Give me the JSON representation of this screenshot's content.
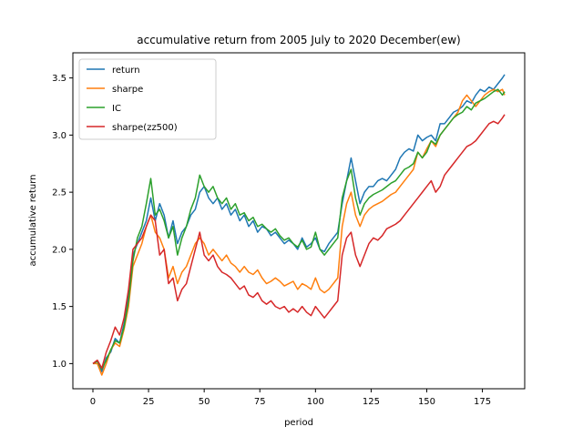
{
  "chart_data": {
    "type": "line",
    "title": "accumulative return from 2005 July to 2020 December(ew)",
    "xlabel": "period",
    "ylabel": "accumulative return",
    "xlim": [
      -9,
      194
    ],
    "ylim": [
      0.78,
      3.72
    ],
    "xticks": [
      0,
      25,
      50,
      75,
      100,
      125,
      150,
      175
    ],
    "xtick_labels": [
      "0",
      "25",
      "50",
      "75",
      "100",
      "125",
      "150",
      "175"
    ],
    "yticks": [
      1.0,
      1.5,
      2.0,
      2.5,
      3.0,
      3.5
    ],
    "ytick_labels": [
      "1.0",
      "1.5",
      "2.0",
      "2.5",
      "3.0",
      "3.5"
    ],
    "grid": false,
    "legend_position": "upper-left",
    "series": [
      {
        "name": "return",
        "color": "#1f77b4",
        "x": [
          0,
          2,
          4,
          6,
          8,
          10,
          12,
          14,
          16,
          18,
          20,
          22,
          24,
          26,
          28,
          30,
          32,
          34,
          36,
          38,
          40,
          42,
          44,
          46,
          48,
          50,
          52,
          54,
          56,
          58,
          60,
          62,
          64,
          66,
          68,
          70,
          72,
          74,
          76,
          78,
          80,
          82,
          84,
          86,
          88,
          90,
          92,
          94,
          96,
          98,
          100,
          102,
          104,
          106,
          108,
          110,
          112,
          114,
          116,
          118,
          120,
          122,
          124,
          126,
          128,
          130,
          132,
          134,
          136,
          138,
          140,
          142,
          144,
          146,
          148,
          150,
          152,
          154,
          156,
          158,
          160,
          162,
          164,
          166,
          168,
          170,
          172,
          174,
          176,
          178,
          180,
          182,
          184,
          185
        ],
        "y": [
          1.0,
          1.02,
          0.93,
          1.05,
          1.1,
          1.22,
          1.18,
          1.35,
          1.6,
          1.95,
          2.05,
          2.15,
          2.25,
          2.45,
          2.25,
          2.4,
          2.3,
          2.1,
          2.25,
          2.05,
          2.15,
          2.2,
          2.3,
          2.35,
          2.5,
          2.55,
          2.45,
          2.4,
          2.45,
          2.35,
          2.4,
          2.3,
          2.35,
          2.25,
          2.3,
          2.2,
          2.25,
          2.15,
          2.2,
          2.18,
          2.12,
          2.15,
          2.1,
          2.05,
          2.08,
          2.05,
          2.0,
          2.1,
          2.02,
          2.05,
          2.1,
          2.0,
          1.98,
          2.05,
          2.1,
          2.15,
          2.4,
          2.6,
          2.8,
          2.6,
          2.4,
          2.5,
          2.55,
          2.55,
          2.6,
          2.62,
          2.6,
          2.65,
          2.7,
          2.8,
          2.85,
          2.88,
          2.86,
          3.0,
          2.95,
          2.98,
          3.0,
          2.95,
          3.1,
          3.1,
          3.15,
          3.2,
          3.22,
          3.25,
          3.3,
          3.28,
          3.35,
          3.4,
          3.38,
          3.42,
          3.4,
          3.45,
          3.5,
          3.53
        ]
      },
      {
        "name": "sharpe",
        "color": "#ff7f0e",
        "x": [
          0,
          2,
          4,
          6,
          8,
          10,
          12,
          14,
          16,
          18,
          20,
          22,
          24,
          26,
          28,
          30,
          32,
          34,
          36,
          38,
          40,
          42,
          44,
          46,
          48,
          50,
          52,
          54,
          56,
          58,
          60,
          62,
          64,
          66,
          68,
          70,
          72,
          74,
          76,
          78,
          80,
          82,
          84,
          86,
          88,
          90,
          92,
          94,
          96,
          98,
          100,
          102,
          104,
          106,
          108,
          110,
          112,
          114,
          116,
          118,
          120,
          122,
          124,
          126,
          128,
          130,
          132,
          134,
          136,
          138,
          140,
          142,
          144,
          146,
          148,
          150,
          152,
          154,
          156,
          158,
          160,
          162,
          164,
          166,
          168,
          170,
          172,
          174,
          176,
          178,
          180,
          182,
          184,
          185
        ],
        "y": [
          1.0,
          1.0,
          0.9,
          1.0,
          1.12,
          1.18,
          1.15,
          1.3,
          1.5,
          1.85,
          1.95,
          2.05,
          2.2,
          2.3,
          2.15,
          2.1,
          2.0,
          1.75,
          1.85,
          1.7,
          1.8,
          1.85,
          1.95,
          2.05,
          2.1,
          2.05,
          1.95,
          2.0,
          1.95,
          1.9,
          1.95,
          1.88,
          1.85,
          1.8,
          1.85,
          1.8,
          1.78,
          1.82,
          1.75,
          1.7,
          1.72,
          1.75,
          1.72,
          1.68,
          1.7,
          1.72,
          1.65,
          1.7,
          1.68,
          1.65,
          1.75,
          1.65,
          1.62,
          1.65,
          1.7,
          1.75,
          2.2,
          2.4,
          2.5,
          2.3,
          2.2,
          2.3,
          2.35,
          2.38,
          2.4,
          2.42,
          2.45,
          2.48,
          2.5,
          2.55,
          2.6,
          2.65,
          2.7,
          2.85,
          2.8,
          2.88,
          2.95,
          2.9,
          3.0,
          3.05,
          3.1,
          3.15,
          3.2,
          3.3,
          3.35,
          3.3,
          3.25,
          3.3,
          3.35,
          3.38,
          3.4,
          3.38,
          3.4,
          3.35
        ]
      },
      {
        "name": "IC",
        "color": "#2ca02c",
        "x": [
          0,
          2,
          4,
          6,
          8,
          10,
          12,
          14,
          16,
          18,
          20,
          22,
          24,
          26,
          28,
          30,
          32,
          34,
          36,
          38,
          40,
          42,
          44,
          46,
          48,
          50,
          52,
          54,
          56,
          58,
          60,
          62,
          64,
          66,
          68,
          70,
          72,
          74,
          76,
          78,
          80,
          82,
          84,
          86,
          88,
          90,
          92,
          94,
          96,
          98,
          100,
          102,
          104,
          106,
          108,
          110,
          112,
          114,
          116,
          118,
          120,
          122,
          124,
          126,
          128,
          130,
          132,
          134,
          136,
          138,
          140,
          142,
          144,
          146,
          148,
          150,
          152,
          154,
          156,
          158,
          160,
          162,
          164,
          166,
          168,
          170,
          172,
          174,
          176,
          178,
          180,
          182,
          184,
          185
        ],
        "y": [
          1.0,
          1.02,
          0.95,
          1.03,
          1.12,
          1.2,
          1.18,
          1.32,
          1.55,
          1.9,
          2.1,
          2.2,
          2.4,
          2.62,
          2.3,
          2.35,
          2.25,
          2.1,
          2.2,
          1.95,
          2.1,
          2.2,
          2.35,
          2.45,
          2.65,
          2.55,
          2.5,
          2.55,
          2.45,
          2.4,
          2.45,
          2.35,
          2.4,
          2.3,
          2.32,
          2.25,
          2.28,
          2.2,
          2.22,
          2.18,
          2.15,
          2.18,
          2.12,
          2.08,
          2.1,
          2.05,
          2.02,
          2.08,
          2.0,
          2.02,
          2.15,
          2.0,
          1.95,
          2.0,
          2.05,
          2.1,
          2.45,
          2.6,
          2.7,
          2.45,
          2.3,
          2.4,
          2.45,
          2.48,
          2.5,
          2.52,
          2.55,
          2.58,
          2.6,
          2.65,
          2.7,
          2.72,
          2.75,
          2.85,
          2.8,
          2.85,
          2.95,
          2.92,
          3.0,
          3.05,
          3.1,
          3.15,
          3.18,
          3.2,
          3.25,
          3.22,
          3.28,
          3.3,
          3.32,
          3.35,
          3.38,
          3.4,
          3.35,
          3.38
        ]
      },
      {
        "name": "sharpe(zz500)",
        "color": "#d62728",
        "x": [
          0,
          2,
          4,
          6,
          8,
          10,
          12,
          14,
          16,
          18,
          20,
          22,
          24,
          26,
          28,
          30,
          32,
          34,
          36,
          38,
          40,
          42,
          44,
          46,
          48,
          50,
          52,
          54,
          56,
          58,
          60,
          62,
          64,
          66,
          68,
          70,
          72,
          74,
          76,
          78,
          80,
          82,
          84,
          86,
          88,
          90,
          92,
          94,
          96,
          98,
          100,
          102,
          104,
          106,
          108,
          110,
          112,
          114,
          116,
          118,
          120,
          122,
          124,
          126,
          128,
          130,
          132,
          134,
          136,
          138,
          140,
          142,
          144,
          146,
          148,
          150,
          152,
          154,
          156,
          158,
          160,
          162,
          164,
          166,
          168,
          170,
          172,
          174,
          176,
          178,
          180,
          182,
          184,
          185
        ],
        "y": [
          1.0,
          1.03,
          0.96,
          1.1,
          1.2,
          1.32,
          1.25,
          1.4,
          1.65,
          2.0,
          2.05,
          2.1,
          2.2,
          2.3,
          2.25,
          1.95,
          2.0,
          1.7,
          1.75,
          1.55,
          1.65,
          1.7,
          1.85,
          2.0,
          2.15,
          1.95,
          1.9,
          1.95,
          1.85,
          1.8,
          1.78,
          1.75,
          1.7,
          1.65,
          1.68,
          1.6,
          1.58,
          1.62,
          1.55,
          1.52,
          1.55,
          1.5,
          1.48,
          1.5,
          1.45,
          1.48,
          1.45,
          1.5,
          1.45,
          1.42,
          1.5,
          1.45,
          1.4,
          1.45,
          1.5,
          1.55,
          1.95,
          2.1,
          2.15,
          1.95,
          1.85,
          1.95,
          2.05,
          2.1,
          2.08,
          2.12,
          2.18,
          2.2,
          2.22,
          2.25,
          2.3,
          2.35,
          2.4,
          2.45,
          2.5,
          2.55,
          2.6,
          2.5,
          2.55,
          2.65,
          2.7,
          2.75,
          2.8,
          2.85,
          2.9,
          2.92,
          2.95,
          3.0,
          3.05,
          3.1,
          3.12,
          3.1,
          3.15,
          3.18
        ]
      }
    ]
  }
}
